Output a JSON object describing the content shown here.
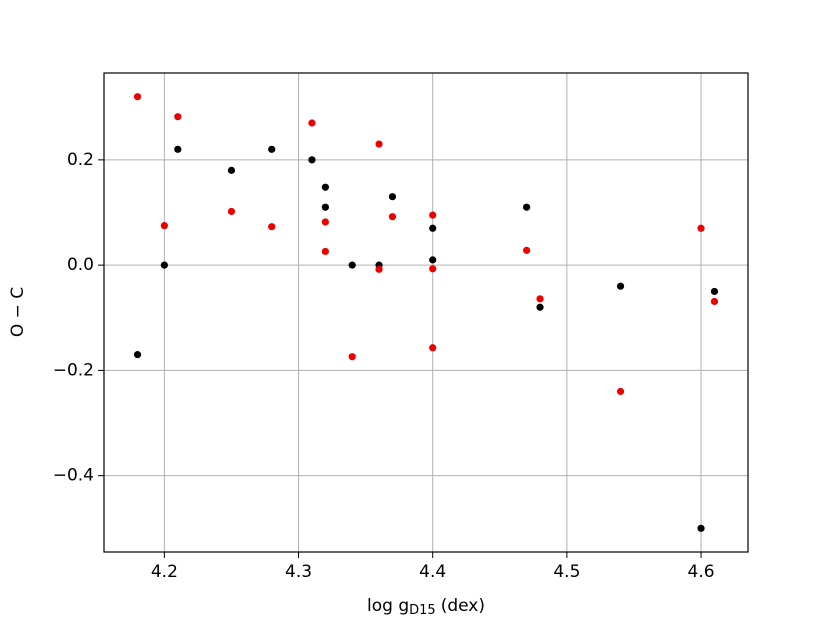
{
  "chart_data": {
    "type": "scatter",
    "xlabel": [
      "log g",
      "D15",
      "(dex)"
    ],
    "ylabel": "O − C",
    "xlim": [
      4.155,
      4.635
    ],
    "ylim": [
      -0.545,
      0.365
    ],
    "xticks": [
      4.2,
      4.3,
      4.4,
      4.5,
      4.6
    ],
    "yticks": [
      {
        "value": -0.4,
        "label": "−0.4"
      },
      {
        "value": -0.2,
        "label": "−0.2"
      },
      {
        "value": 0,
        "label": "0.0"
      },
      0.2
    ],
    "grid": true,
    "series": [
      {
        "color": "#000000",
        "x": [
          4.18,
          4.2,
          4.21,
          4.25,
          4.28,
          4.31,
          4.32,
          4.32,
          4.34,
          4.36,
          4.37,
          4.4,
          4.4,
          4.47,
          4.48,
          4.54,
          4.6,
          4.61
        ],
        "values": [
          -0.17,
          0.0,
          0.22,
          0.18,
          0.22,
          0.2,
          0.148,
          0.11,
          0.0,
          0.0,
          0.13,
          0.07,
          0.01,
          0.11,
          -0.08,
          -0.04,
          -0.5,
          -0.05
        ]
      },
      {
        "color": "#ee0000",
        "x": [
          4.18,
          4.2,
          4.21,
          4.25,
          4.28,
          4.31,
          4.32,
          4.32,
          4.34,
          4.36,
          4.36,
          4.37,
          4.4,
          4.4,
          4.4,
          4.47,
          4.48,
          4.54,
          4.6,
          4.61
        ],
        "values": [
          0.32,
          0.075,
          0.282,
          0.102,
          0.073,
          0.27,
          0.082,
          0.026,
          -0.174,
          0.23,
          -0.008,
          0.092,
          0.095,
          -0.007,
          -0.157,
          0.028,
          -0.064,
          -0.24,
          0.07,
          -0.069
        ]
      }
    ]
  }
}
